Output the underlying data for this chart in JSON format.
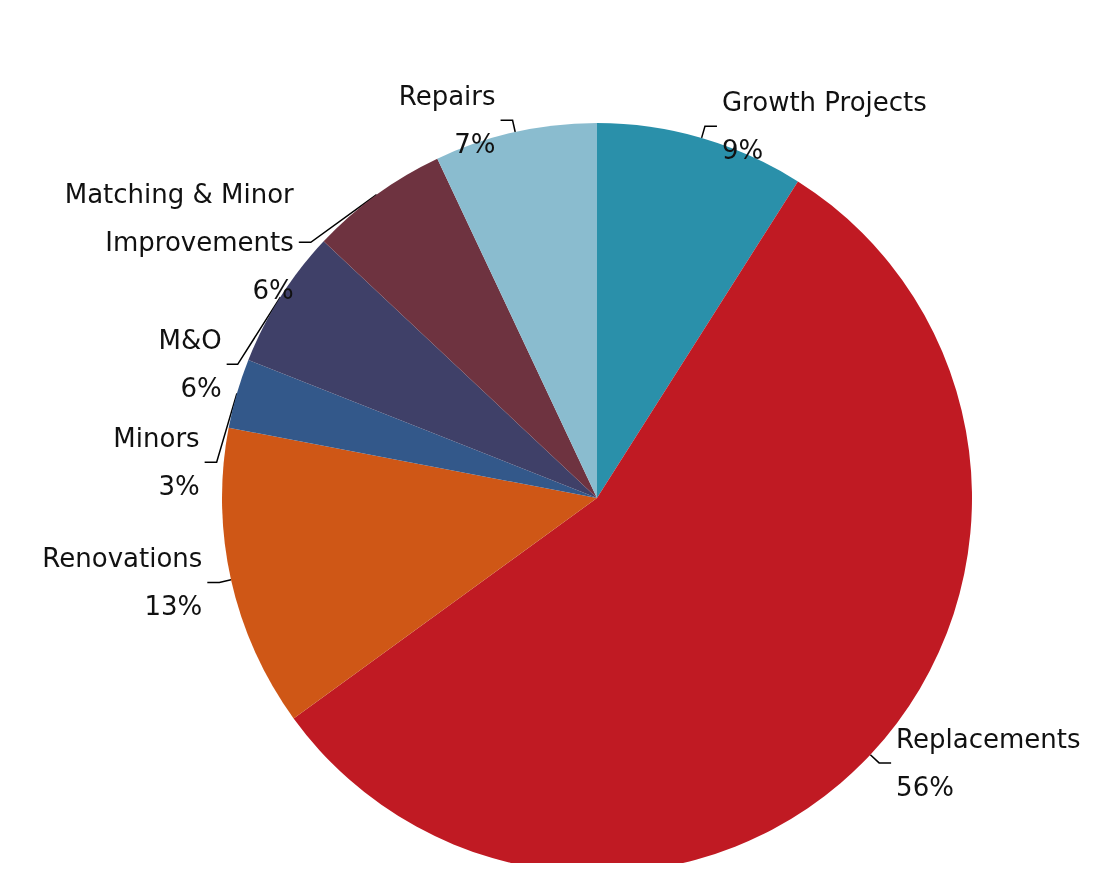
{
  "chart_data": {
    "type": "pie",
    "categories": [
      "Growth Projects",
      "Replacements",
      "Renovations",
      "Minors",
      "M&O",
      "Matching & Minor Improvements",
      "Repairs"
    ],
    "values": [
      9,
      56,
      13,
      3,
      6,
      6,
      7
    ],
    "value_labels": [
      "9%",
      "56%",
      "13%",
      "3%",
      "6%",
      "6%",
      "7%"
    ],
    "colors": [
      "#2a90aa",
      "#c01a23",
      "#cf5716",
      "#33588a",
      "#3f4068",
      "#6e3340",
      "#8abccf"
    ],
    "legend": false
  }
}
